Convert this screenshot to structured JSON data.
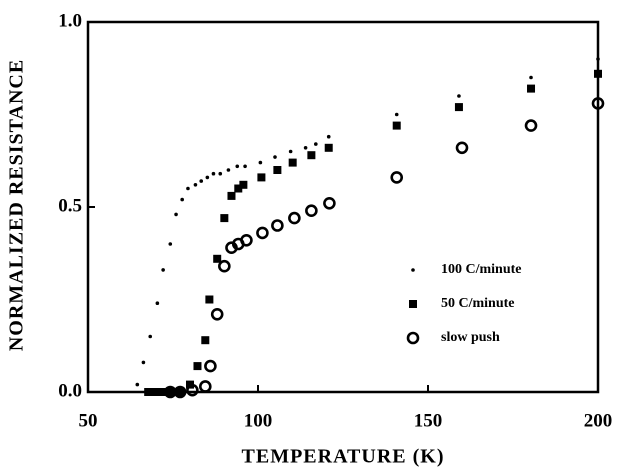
{
  "chart_data": {
    "type": "scatter",
    "x_label": "TEMPERATURE (K)",
    "y_label": "NORMALIZED RESISTANCE",
    "xlim": [
      50,
      200
    ],
    "ylim": [
      0,
      1
    ],
    "xticks": [
      50,
      100,
      150,
      200
    ],
    "yticks": [
      {
        "value": 0,
        "label": "0.0"
      },
      0.5,
      {
        "value": 1,
        "label": "1.0"
      }
    ],
    "legend": "lower right",
    "series": [
      {
        "name": "100 C/minute",
        "color": "#000000",
        "marker": "dot",
        "x": [
          64.5,
          66.3,
          68.3,
          70.4,
          72.1,
          74.2,
          75.9,
          77.7,
          79.4,
          81.6,
          83.3,
          85.1,
          86.9,
          88.9,
          91.3,
          93.9,
          96.2,
          100.7,
          105,
          109.6,
          114,
          117,
          120.8,
          140.8,
          159.1,
          180.3,
          200
        ],
        "values": [
          0.02,
          0.08,
          0.15,
          0.24,
          0.33,
          0.4,
          0.48,
          0.52,
          0.55,
          0.56,
          0.57,
          0.58,
          0.59,
          0.59,
          0.6,
          0.61,
          0.61,
          0.62,
          0.635,
          0.65,
          0.66,
          0.67,
          0.69,
          0.75,
          0.8,
          0.85,
          0.9
        ]
      },
      {
        "name": "50 C/minute",
        "color": "#000000",
        "marker": "square",
        "x": [
          67.7,
          69.8,
          71.8,
          74.2,
          77.1,
          80,
          82.2,
          84.5,
          85.7,
          88,
          90.1,
          92.2,
          94.2,
          95.7,
          101,
          105.7,
          110.2,
          115.7,
          120.8,
          140.8,
          159.1,
          180.3,
          200
        ],
        "values": [
          0,
          0,
          0,
          0,
          0,
          0.02,
          0.07,
          0.14,
          0.25,
          0.36,
          0.47,
          0.53,
          0.55,
          0.56,
          0.58,
          0.6,
          0.62,
          0.64,
          0.66,
          0.72,
          0.77,
          0.82,
          0.86
        ]
      },
      {
        "name": "slow push",
        "color": "#000000",
        "marker": "circle",
        "x": [
          74.2,
          77.1,
          80.7,
          84.5,
          86,
          88,
          90.1,
          92.2,
          94.2,
          96.6,
          101.3,
          105.7,
          110.7,
          115.7,
          121,
          140.8,
          160,
          180.3,
          200
        ],
        "values": [
          0,
          0,
          0.005,
          0.015,
          0.07,
          0.21,
          0.34,
          0.39,
          0.4,
          0.41,
          0.43,
          0.45,
          0.47,
          0.49,
          0.51,
          0.58,
          0.66,
          0.72,
          0.78
        ]
      }
    ]
  }
}
